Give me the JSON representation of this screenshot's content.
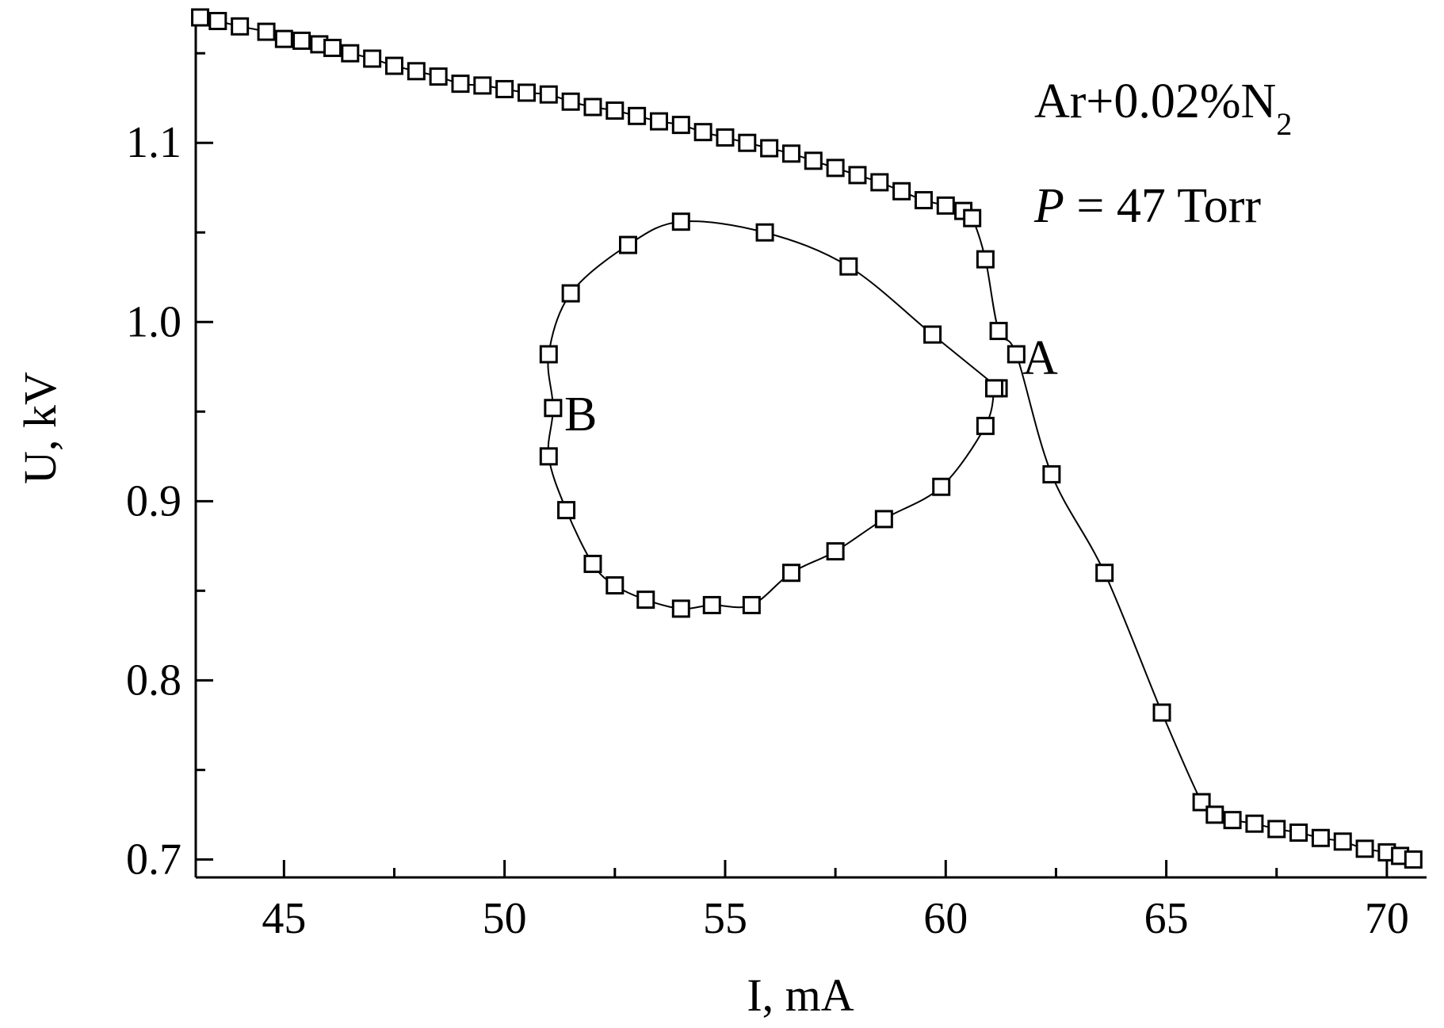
{
  "chart_data": {
    "type": "scatter",
    "title": "",
    "xlabel": "I, mA",
    "ylabel": "U, kV",
    "xlim": [
      43,
      70.9
    ],
    "ylim": [
      0.69,
      1.17
    ],
    "x_ticks": [
      45,
      50,
      55,
      60,
      65,
      70
    ],
    "x_tick_labels": [
      "45",
      "50",
      "55",
      "60",
      "65",
      "70"
    ],
    "y_ticks": [
      0.7,
      0.8,
      0.9,
      1.0,
      1.1
    ],
    "y_tick_labels": [
      "0.7",
      "0.8",
      "0.9",
      "1.0",
      "1.1"
    ],
    "grid": false,
    "annotations": {
      "gas": "Ar+0.02%N",
      "gas_subscript": "2",
      "pressure_symbol": "P",
      "pressure_value": " = 47 Torr",
      "point_a": "A",
      "point_b": "B"
    },
    "series": [
      {
        "marker": "square",
        "x": [
          43.1,
          43.5,
          44.0,
          44.6,
          45.0,
          45.4,
          45.8,
          46.1,
          46.5,
          47.0,
          47.5,
          48.0,
          48.5,
          49.0,
          49.5,
          50.0,
          50.5,
          51.0,
          51.5,
          52.0,
          52.5,
          53.0,
          53.5,
          54.0,
          54.5,
          55.0,
          55.5,
          56.0,
          56.5,
          57.0,
          57.5,
          58.0,
          58.5,
          59.0,
          59.5,
          60.0,
          60.4,
          60.6,
          60.9,
          61.2,
          61.6,
          62.4,
          63.6,
          64.9,
          65.8,
          66.1,
          66.5,
          67.0,
          67.5,
          68.0,
          68.5,
          69.0,
          69.5,
          70.0,
          70.3,
          70.6
        ],
        "y": [
          1.17,
          1.168,
          1.165,
          1.162,
          1.158,
          1.157,
          1.155,
          1.153,
          1.15,
          1.147,
          1.143,
          1.14,
          1.137,
          1.133,
          1.132,
          1.13,
          1.128,
          1.127,
          1.123,
          1.12,
          1.118,
          1.115,
          1.112,
          1.11,
          1.106,
          1.103,
          1.1,
          1.097,
          1.094,
          1.09,
          1.086,
          1.082,
          1.078,
          1.073,
          1.068,
          1.065,
          1.062,
          1.058,
          1.035,
          0.995,
          0.982,
          0.915,
          0.86,
          0.782,
          0.732,
          0.725,
          0.722,
          0.72,
          0.717,
          0.715,
          0.712,
          0.71,
          0.706,
          0.704,
          0.702,
          0.7
        ]
      },
      {
        "marker": "square",
        "x": [
          61.2,
          59.7,
          57.8,
          55.9,
          54.0,
          52.8,
          51.5,
          51.0,
          51.1,
          51.0,
          51.4,
          52.0,
          52.5,
          53.2,
          54.0,
          54.7,
          55.6,
          56.5,
          57.5,
          58.6,
          59.9,
          60.9,
          61.1
        ],
        "y": [
          0.963,
          0.993,
          1.031,
          1.05,
          1.056,
          1.043,
          1.016,
          0.982,
          0.952,
          0.925,
          0.895,
          0.865,
          0.853,
          0.845,
          0.84,
          0.842,
          0.842,
          0.86,
          0.872,
          0.89,
          0.908,
          0.942,
          0.963
        ]
      }
    ]
  }
}
